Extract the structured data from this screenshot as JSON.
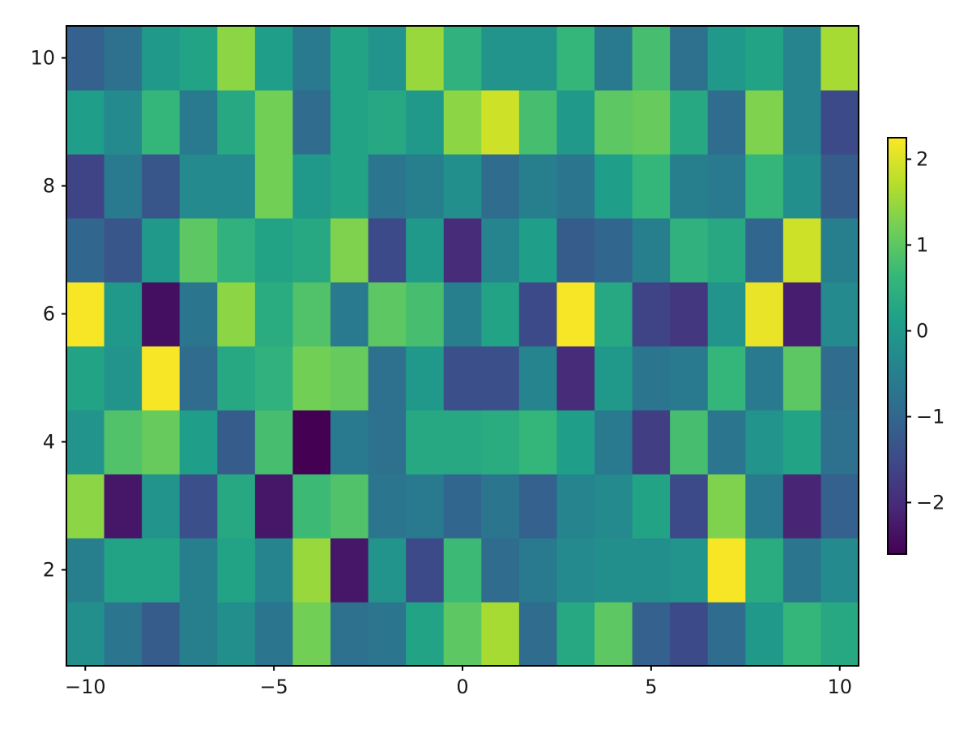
{
  "chart_data": {
    "type": "heatmap",
    "title": "",
    "xlabel": "",
    "ylabel": "",
    "x": [
      -10,
      -9,
      -8,
      -7,
      -6,
      -5,
      -4,
      -3,
      -2,
      -1,
      0,
      1,
      2,
      3,
      4,
      5,
      6,
      7,
      8,
      9,
      10
    ],
    "y": [
      1,
      2,
      3,
      4,
      5,
      6,
      7,
      8,
      9,
      10
    ],
    "xlim": [
      -10.5,
      10.5
    ],
    "ylim": [
      0.5,
      10.5
    ],
    "x_ticks": [
      -10,
      -5,
      0,
      5,
      10
    ],
    "x_tick_labels": [
      "−10",
      "−5",
      "0",
      "5",
      "10"
    ],
    "y_ticks": [
      2,
      4,
      6,
      8,
      10
    ],
    "y_tick_labels": [
      "2",
      "4",
      "6",
      "8",
      "10"
    ],
    "colormap": "viridis",
    "colorbar": {
      "range": [
        -2.6,
        2.25
      ],
      "ticks": [
        -2,
        -1,
        0,
        1,
        2
      ],
      "tick_labels": [
        "−2",
        "−1",
        "0",
        "1",
        "2"
      ]
    },
    "grid": false,
    "values": [
      [
        -0.2,
        -0.7,
        -1.2,
        -0.5,
        -0.2,
        -0.7,
        1.2,
        -0.8,
        -0.7,
        0.2,
        1.0,
        1.6,
        -0.9,
        0.3,
        1.0,
        -1.1,
        -1.5,
        -0.9,
        0.0,
        0.6,
        0.3
      ],
      [
        -0.5,
        0.2,
        0.2,
        -0.5,
        0.2,
        -0.4,
        1.5,
        -2.3,
        -0.1,
        -1.5,
        0.7,
        -0.9,
        -0.6,
        -0.3,
        -0.2,
        -0.2,
        -0.1,
        2.2,
        0.4,
        -0.7,
        -0.3
      ],
      [
        1.4,
        -2.3,
        -0.1,
        -1.4,
        0.3,
        -2.3,
        0.7,
        0.9,
        -0.7,
        -0.6,
        -1.0,
        -0.7,
        -1.1,
        -0.4,
        -0.3,
        0.2,
        -1.5,
        1.3,
        -0.6,
        -2.1,
        -1.1
      ],
      [
        -0.1,
        0.9,
        1.1,
        0.1,
        -1.2,
        0.8,
        -2.6,
        -0.6,
        -0.8,
        0.3,
        0.3,
        0.4,
        0.6,
        0.1,
        -0.6,
        -1.7,
        0.8,
        -0.7,
        -0.1,
        0.2,
        -0.8
      ],
      [
        0.2,
        -0.1,
        2.2,
        -0.9,
        0.3,
        0.5,
        1.2,
        1.1,
        -0.8,
        0.0,
        -1.4,
        -1.4,
        -0.4,
        -2.0,
        0.0,
        -0.7,
        -0.6,
        0.6,
        -0.6,
        1.0,
        -0.9
      ],
      [
        2.2,
        0.0,
        -2.4,
        -0.7,
        1.4,
        0.4,
        0.9,
        -0.6,
        1.0,
        0.8,
        -0.5,
        0.2,
        -1.5,
        2.2,
        0.3,
        -1.6,
        -1.8,
        -0.1,
        2.1,
        -2.2,
        -0.3
      ],
      [
        -1.0,
        -1.3,
        0.0,
        1.0,
        0.5,
        0.2,
        0.3,
        1.3,
        -1.5,
        0.0,
        -2.0,
        -0.4,
        0.1,
        -1.2,
        -1.0,
        -0.5,
        0.5,
        0.3,
        -1.0,
        1.9,
        -0.5
      ],
      [
        -1.6,
        -0.6,
        -1.3,
        -0.3,
        -0.3,
        1.2,
        0.0,
        0.2,
        -0.7,
        -0.5,
        -0.2,
        -0.9,
        -0.5,
        -0.7,
        0.1,
        0.6,
        -0.5,
        -0.6,
        0.6,
        -0.2,
        -1.2
      ],
      [
        0.1,
        -0.3,
        0.6,
        -0.6,
        0.3,
        1.2,
        -0.9,
        0.2,
        0.3,
        0.0,
        1.4,
        1.9,
        0.8,
        0.0,
        1.0,
        1.1,
        0.3,
        -0.9,
        1.3,
        -0.4,
        -1.5
      ],
      [
        -1.1,
        -0.8,
        0.0,
        0.2,
        1.4,
        0.1,
        -0.6,
        0.2,
        -0.1,
        1.5,
        0.5,
        -0.1,
        -0.1,
        0.6,
        -0.6,
        0.8,
        -0.8,
        0.0,
        0.2,
        -0.4,
        1.6
      ]
    ]
  }
}
